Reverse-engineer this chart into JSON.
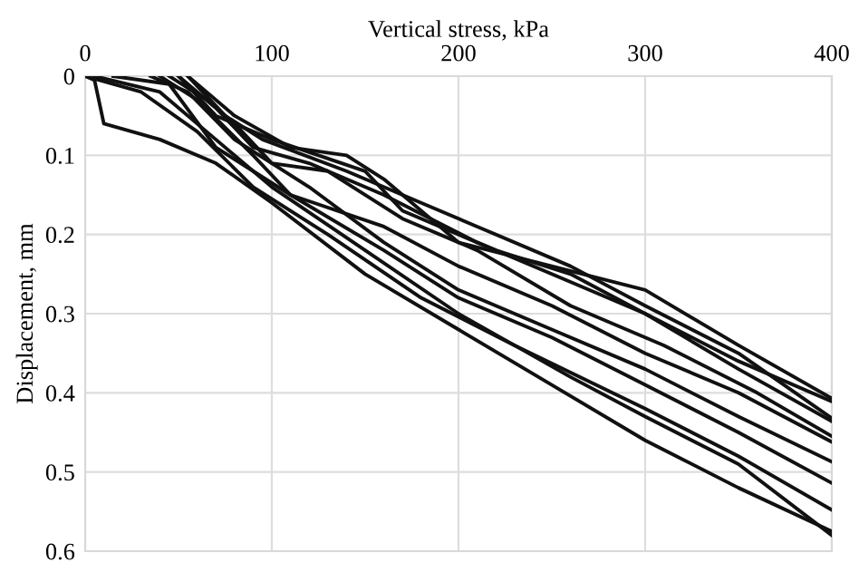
{
  "chart_data": {
    "type": "line",
    "xlabel": "Vertical stress, kPa",
    "ylabel": "Displacement, mm",
    "xlim": [
      0,
      400
    ],
    "xticks": [
      0,
      100,
      200,
      300,
      400
    ],
    "ylim": [
      0.6,
      0
    ],
    "yticks": [
      0,
      0.1,
      0.2,
      0.3,
      0.4,
      0.5,
      0.6
    ],
    "grid": true,
    "marker": "none",
    "line_style": "solid",
    "series": [
      {
        "color": "#111111",
        "x": [
          0,
          5,
          10,
          40,
          70,
          100,
          150,
          200,
          250,
          300,
          350,
          400
        ],
        "values": [
          0,
          0.005,
          0.06,
          0.08,
          0.11,
          0.16,
          0.25,
          0.32,
          0.39,
          0.46,
          0.52,
          0.575
        ]
      },
      {
        "color": "#111111",
        "x": [
          0,
          30,
          60,
          90,
          130,
          180,
          230,
          300,
          350,
          400
        ],
        "values": [
          0,
          0.02,
          0.07,
          0.14,
          0.2,
          0.28,
          0.34,
          0.42,
          0.48,
          0.548
        ]
      },
      {
        "color": "#111111",
        "x": [
          5,
          40,
          70,
          100,
          150,
          200,
          260,
          300,
          350,
          400
        ],
        "values": [
          0,
          0.02,
          0.08,
          0.14,
          0.22,
          0.3,
          0.38,
          0.43,
          0.49,
          0.58
        ]
      },
      {
        "color": "#111111",
        "x": [
          15,
          45,
          70,
          110,
          160,
          200,
          250,
          300,
          350,
          400
        ],
        "values": [
          0,
          0.01,
          0.09,
          0.15,
          0.22,
          0.28,
          0.33,
          0.39,
          0.45,
          0.514
        ]
      },
      {
        "color": "#111111",
        "x": [
          35,
          55,
          80,
          120,
          160,
          200,
          250,
          300,
          350,
          400
        ],
        "values": [
          0,
          0.02,
          0.08,
          0.14,
          0.21,
          0.27,
          0.32,
          0.37,
          0.43,
          0.487
        ]
      },
      {
        "color": "#111111",
        "x": [
          40,
          60,
          90,
          110,
          160,
          200,
          250,
          300,
          350,
          400
        ],
        "values": [
          0,
          0.03,
          0.1,
          0.15,
          0.19,
          0.24,
          0.29,
          0.35,
          0.4,
          0.462
        ]
      },
      {
        "color": "#111111",
        "x": [
          45,
          65,
          80,
          100,
          130,
          170,
          210,
          260,
          310,
          360,
          400
        ],
        "values": [
          0,
          0.03,
          0.06,
          0.11,
          0.12,
          0.18,
          0.22,
          0.29,
          0.34,
          0.4,
          0.455
        ]
      },
      {
        "color": "#111111",
        "x": [
          50,
          70,
          90,
          120,
          160,
          210,
          260,
          300,
          350,
          400
        ],
        "values": [
          0,
          0.04,
          0.09,
          0.11,
          0.15,
          0.21,
          0.26,
          0.3,
          0.37,
          0.436
        ]
      },
      {
        "color": "#111111",
        "x": [
          55,
          75,
          95,
          140,
          180,
          210,
          260,
          300,
          350,
          400
        ],
        "values": [
          0,
          0.05,
          0.08,
          0.12,
          0.16,
          0.19,
          0.24,
          0.29,
          0.35,
          0.432
        ]
      },
      {
        "color": "#111111",
        "x": [
          50,
          70,
          100,
          150,
          170,
          220,
          260,
          300,
          350,
          400
        ],
        "values": [
          0,
          0.05,
          0.08,
          0.12,
          0.17,
          0.22,
          0.25,
          0.3,
          0.36,
          0.411
        ]
      },
      {
        "color": "#111111",
        "x": [
          55,
          80,
          110,
          140,
          160,
          200,
          250,
          300,
          350,
          400
        ],
        "values": [
          0,
          0.05,
          0.09,
          0.1,
          0.13,
          0.21,
          0.24,
          0.27,
          0.34,
          0.407
        ]
      }
    ]
  }
}
